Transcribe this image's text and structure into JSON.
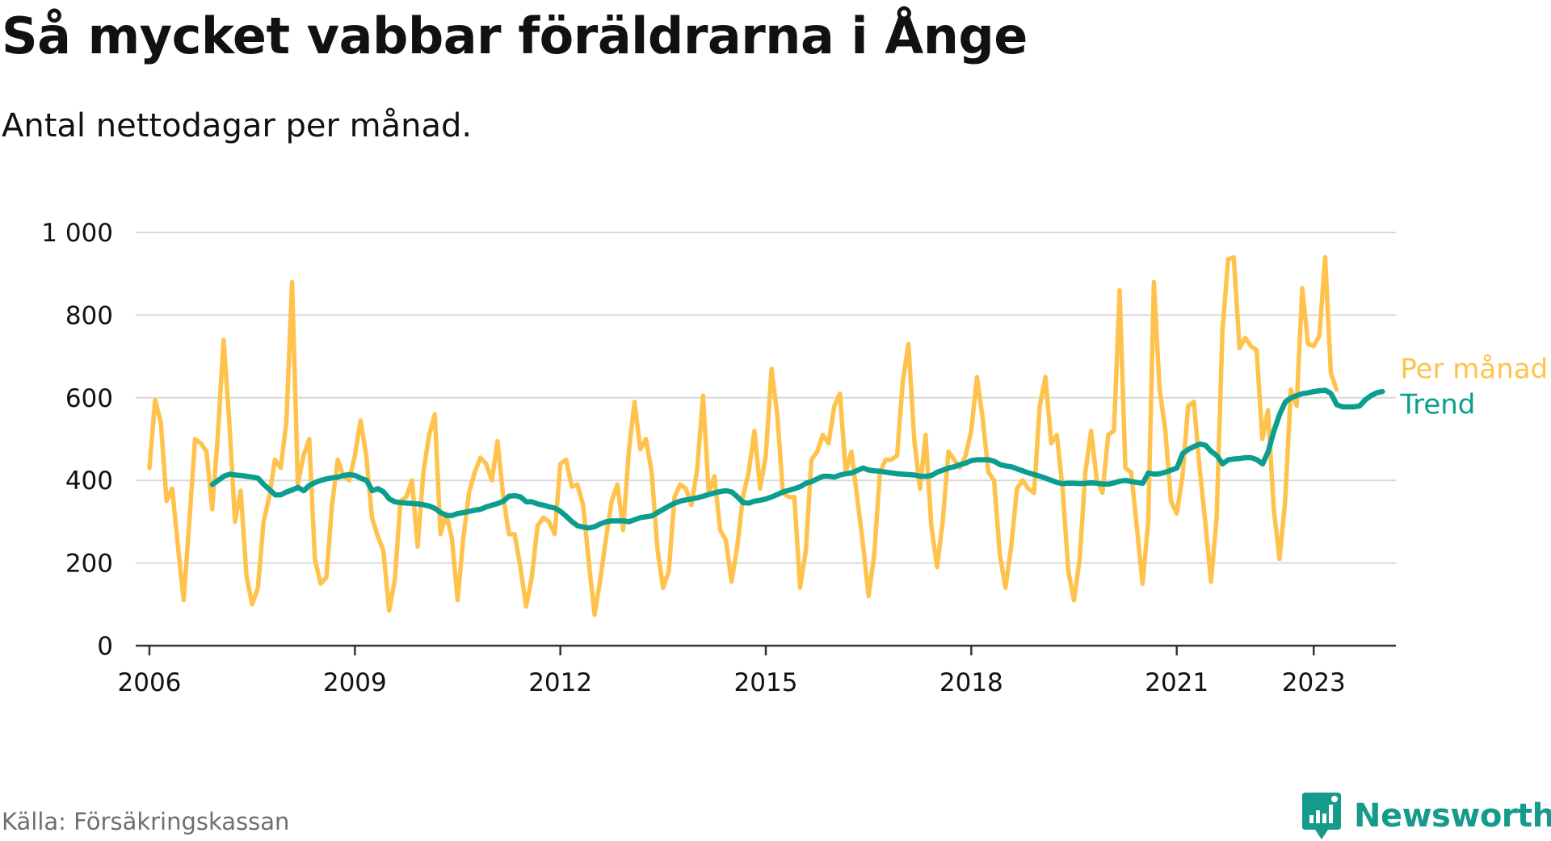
{
  "header": {
    "title": "Så mycket vabbar föräldrarna i Ånge",
    "subtitle": "Antal nettodagar per månad."
  },
  "footer": {
    "source": "Källa: Försäkringskassan",
    "brand": "Newsworthy",
    "brand_icon": "newsworthy-bar-chart-logo-icon"
  },
  "colors": {
    "monthly": "#ffc34d",
    "trend": "#0b9e8e",
    "grid": "#d9d9d9",
    "axis": "#333333",
    "text": "#111111",
    "muted": "#6f6f6f",
    "brand": "#159b8b"
  },
  "chart_data": {
    "type": "line",
    "title": "Så mycket vabbar föräldrarna i Ånge",
    "subtitle": "Antal nettodagar per månad.",
    "xlabel": "",
    "ylabel": "",
    "ylim": [
      0,
      1000
    ],
    "xlim": [
      2005.8,
      2024.2
    ],
    "yticks": [
      0,
      200,
      400,
      600,
      800,
      1000
    ],
    "ytick_labels": [
      "0",
      "200",
      "400",
      "600",
      "800",
      "1 000"
    ],
    "xticks": [
      2006,
      2009,
      2012,
      2015,
      2018,
      2021,
      2023
    ],
    "xtick_labels": [
      "2006",
      "2009",
      "2012",
      "2015",
      "2018",
      "2021",
      "2023"
    ],
    "grid": "horizontal",
    "legend": "direct labels at line ends (right)",
    "series": [
      {
        "name": "Per månad",
        "color": "#ffc34d",
        "start": 2006.0,
        "step": 0.083333,
        "values": [
          430,
          595,
          540,
          350,
          380,
          240,
          110,
          300,
          500,
          490,
          470,
          330,
          510,
          740,
          540,
          300,
          375,
          170,
          100,
          140,
          300,
          360,
          450,
          430,
          540,
          880,
          390,
          460,
          500,
          210,
          150,
          165,
          340,
          450,
          410,
          400,
          460,
          545,
          460,
          310,
          265,
          230,
          85,
          160,
          350,
          360,
          400,
          240,
          420,
          510,
          560,
          270,
          320,
          260,
          110,
          260,
          370,
          420,
          455,
          440,
          400,
          495,
          360,
          270,
          270,
          190,
          95,
          165,
          290,
          310,
          300,
          270,
          440,
          450,
          385,
          390,
          340,
          200,
          75,
          160,
          260,
          350,
          390,
          280,
          470,
          590,
          475,
          500,
          420,
          235,
          140,
          180,
          360,
          390,
          380,
          340,
          430,
          605,
          370,
          410,
          280,
          255,
          155,
          240,
          360,
          420,
          520,
          380,
          460,
          670,
          560,
          370,
          360,
          360,
          140,
          230,
          450,
          470,
          510,
          490,
          580,
          610,
          420,
          470,
          360,
          250,
          120,
          220,
          420,
          450,
          450,
          460,
          640,
          730,
          500,
          380,
          510,
          290,
          190,
          300,
          470,
          450,
          430,
          460,
          520,
          650,
          550,
          420,
          400,
          220,
          140,
          240,
          380,
          400,
          380,
          370,
          580,
          650,
          490,
          510,
          380,
          180,
          110,
          210,
          420,
          520,
          400,
          370,
          510,
          520,
          860,
          430,
          420,
          290,
          150,
          300,
          880,
          620,
          520,
          350,
          320,
          410,
          580,
          590,
          430,
          300,
          155,
          310,
          760,
          935,
          940,
          720,
          745,
          725,
          715,
          500,
          570,
          330,
          210,
          350,
          620,
          580,
          865,
          730,
          725,
          750,
          940,
          660,
          620
        ]
      },
      {
        "name": "Trend",
        "color": "#0b9e8e",
        "start": 2006.92,
        "step": 0.083333,
        "values": [
          390,
          400,
          410,
          415,
          413,
          412,
          410,
          408,
          405,
          390,
          378,
          365,
          365,
          372,
          377,
          383,
          375,
          388,
          395,
          400,
          404,
          406,
          408,
          412,
          414,
          412,
          405,
          400,
          375,
          380,
          372,
          355,
          348,
          346,
          345,
          344,
          343,
          341,
          338,
          332,
          322,
          315,
          315,
          320,
          322,
          325,
          328,
          330,
          336,
          340,
          344,
          350,
          362,
          363,
          360,
          348,
          348,
          343,
          340,
          336,
          333,
          325,
          313,
          300,
          290,
          287,
          285,
          288,
          295,
          300,
          302,
          302,
          302,
          300,
          305,
          310,
          312,
          314,
          322,
          330,
          338,
          345,
          350,
          353,
          355,
          358,
          362,
          366,
          370,
          373,
          375,
          372,
          360,
          346,
          345,
          350,
          352,
          355,
          360,
          366,
          372,
          376,
          380,
          385,
          393,
          397,
          404,
          410,
          410,
          408,
          413,
          416,
          418,
          424,
          430,
          425,
          423,
          422,
          420,
          418,
          416,
          415,
          414,
          413,
          410,
          410,
          412,
          420,
          425,
          430,
          433,
          438,
          442,
          448,
          450,
          450,
          450,
          446,
          438,
          435,
          433,
          428,
          423,
          418,
          414,
          410,
          405,
          400,
          395,
          392,
          393,
          393,
          392,
          393,
          394,
          393,
          391,
          391,
          394,
          398,
          400,
          397,
          395,
          393,
          418,
          415,
          416,
          420,
          425,
          430,
          465,
          475,
          482,
          488,
          485,
          470,
          460,
          440,
          450,
          452,
          453,
          455,
          455,
          450,
          440,
          470,
          520,
          560,
          590,
          600,
          605,
          610,
          612,
          615,
          617,
          618,
          610,
          583,
          578,
          578,
          578,
          580,
          595,
          605,
          612,
          615
        ]
      }
    ]
  }
}
